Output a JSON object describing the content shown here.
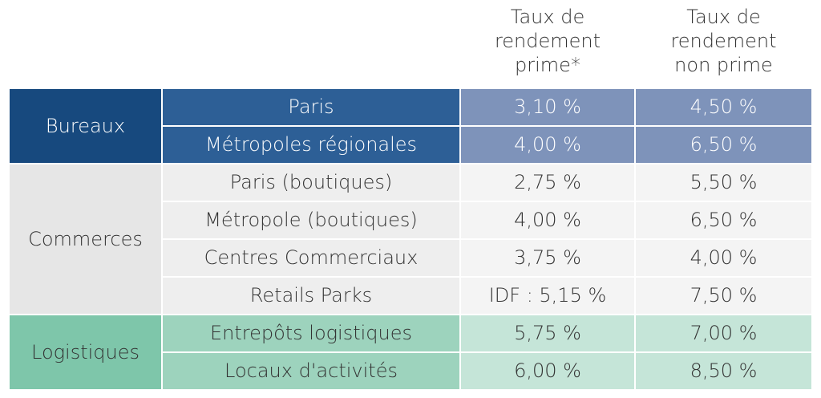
{
  "colors": {
    "bureaux_category": "#17497e",
    "bureaux_sub": "#2d5f96",
    "bureaux_values": "#7e93ba",
    "commerces_category": "#e6e6e6",
    "commerces_values": "#f4f4f4",
    "logistiques_category": "#7ec6aa",
    "logistiques_values": "#c5e5d8"
  },
  "chart_data": {
    "type": "table",
    "columns": [
      [
        "Taux de",
        "rendement",
        "prime*"
      ],
      [
        "Taux de",
        "rendement",
        "non prime"
      ]
    ],
    "groups": [
      {
        "category": "Bureaux",
        "rows": [
          {
            "label": "Paris",
            "prime": "3,10 %",
            "non_prime": "4,50 %"
          },
          {
            "label": "Métropoles régionales",
            "prime": "4,00 %",
            "non_prime": "6,50 %"
          }
        ]
      },
      {
        "category": "Commerces",
        "rows": [
          {
            "label": "Paris (boutiques)",
            "prime": "2,75 %",
            "non_prime": "5,50 %"
          },
          {
            "label": "Métropole (boutiques)",
            "prime": "4,00 %",
            "non_prime": "6,50 %"
          },
          {
            "label": "Centres Commerciaux",
            "prime": "3,75 %",
            "non_prime": "4,00 %"
          },
          {
            "label": "Retails Parks",
            "prime": "IDF : 5,15 %",
            "non_prime": "7,50 %"
          }
        ]
      },
      {
        "category": "Logistiques",
        "rows": [
          {
            "label": "Entrepôts logistiques",
            "prime": "5,75 %",
            "non_prime": "7,00 %"
          },
          {
            "label": "Locaux d'activités",
            "prime": "6,00 %",
            "non_prime": "8,50 %"
          }
        ]
      }
    ]
  }
}
